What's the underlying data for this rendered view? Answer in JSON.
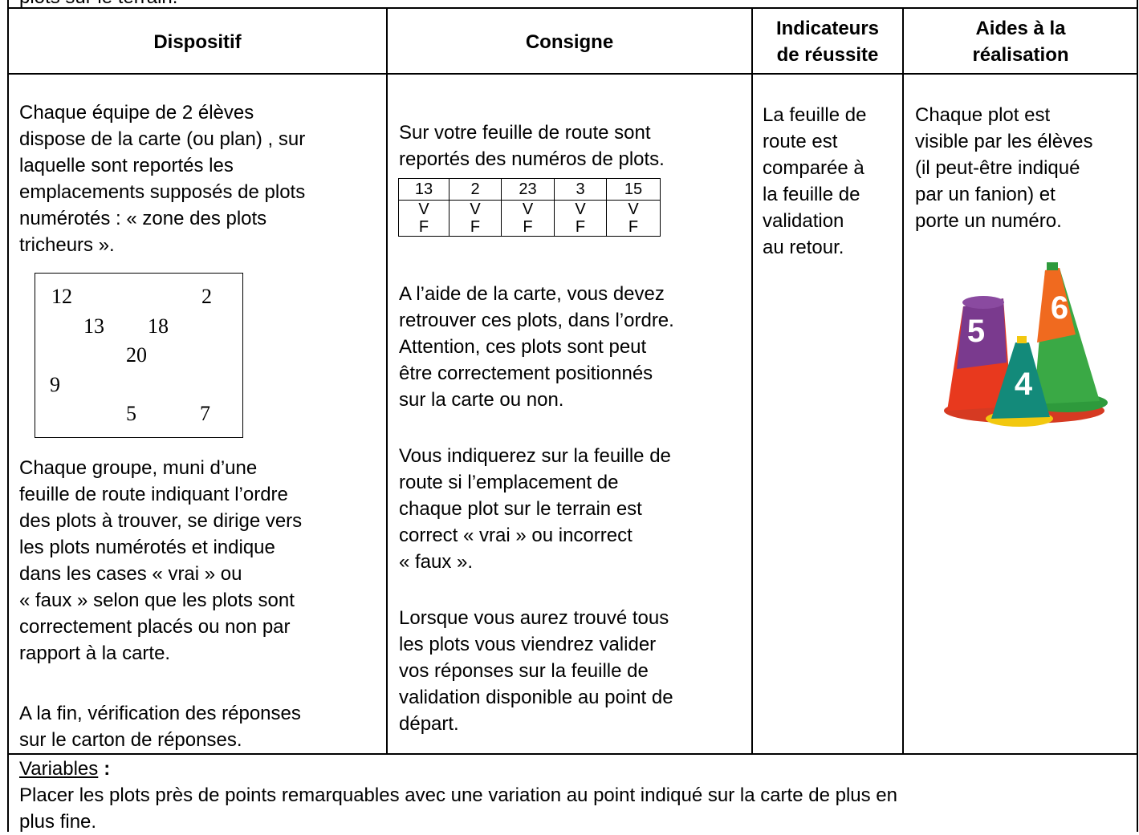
{
  "top_text": "plots sur le terrain.",
  "table": {
    "headers": [
      [
        "Dispositif"
      ],
      [
        "Consigne"
      ],
      [
        "Indicateurs",
        "de réussite"
      ],
      [
        "Aides à la",
        "réalisation"
      ]
    ],
    "dispositif": {
      "paragraphs": [
        [
          "Chaque équipe de 2 élèves",
          "dispose de la carte (ou plan) , sur",
          "laquelle sont reportés les",
          "emplacements supposés de plots",
          "numérotés : « zone des plots",
          "tricheurs »."
        ],
        [
          "Chaque groupe, muni d’une",
          "feuille de route indiquant l’ordre",
          "des plots à trouver, se dirige vers",
          "les plots numérotés et indique",
          "dans les cases « vrai » ou",
          "« faux » selon que les plots sont",
          "correctement placés ou non par",
          "rapport à la carte."
        ],
        [
          "A la fin, vérification des réponses",
          "sur le carton de réponses."
        ]
      ],
      "map_labels": [
        "12",
        "2",
        "13",
        "18",
        "20",
        "9",
        "5",
        "7"
      ]
    },
    "consigne": {
      "paragraphs": [
        [
          "Sur votre feuille de route sont",
          "reportés des numéros de plots."
        ],
        [
          "A l’aide de la carte, vous devez",
          "retrouver ces plots, dans l’ordre.",
          "Attention, ces plots sont peut",
          "être correctement positionnés",
          "sur la carte ou non."
        ],
        [
          " Vous indiquerez sur la feuille de",
          "route si l’emplacement de",
          "chaque plot sur le terrain est",
          "correct « vrai » ou incorrect",
          "« faux »."
        ],
        [
          "Lorsque vous aurez trouvé tous",
          "les plots vous viendrez valider",
          "vos réponses sur la feuille de",
          "validation disponible au point de",
          "départ."
        ]
      ],
      "sheet": {
        "plots": [
          "13",
          "2",
          "23",
          "3",
          "15"
        ],
        "v_row": [
          "V",
          "V",
          "V",
          "V",
          "V"
        ],
        "f_row": [
          "F",
          "F",
          "F",
          "F",
          "F"
        ]
      }
    },
    "indicateurs": [
      "La feuille de",
      "route est",
      "comparée à",
      "la feuille de",
      "validation",
      "au retour."
    ],
    "aides": {
      "lines": [
        "Chaque plot est",
        "visible par les élèves",
        "(il peut-être indiqué",
        "par un fanion) et",
        "porte un numéro."
      ],
      "cone_labels": [
        "5",
        "4",
        "6"
      ]
    }
  },
  "variables": {
    "label": "Variables",
    "colon": ":",
    "lines": [
      "Placer les plots près de points remarquables avec une variation au point indiqué sur la carte de plus en",
      "plus fine."
    ]
  }
}
